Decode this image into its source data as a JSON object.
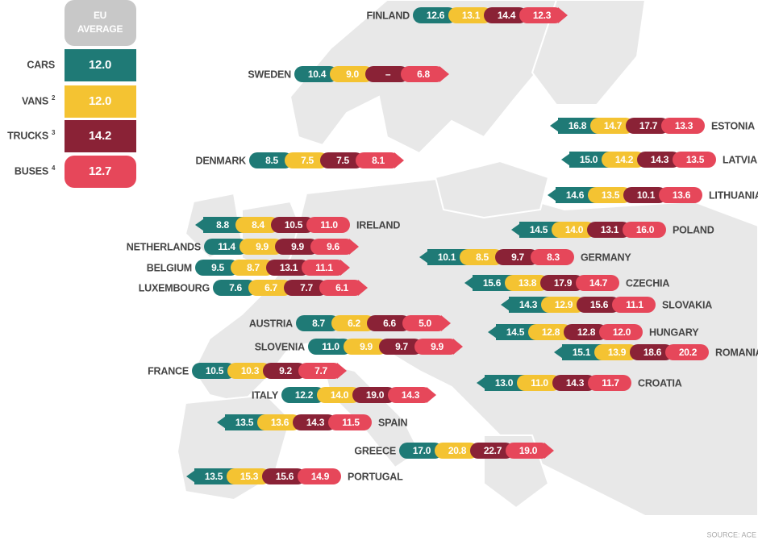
{
  "legend": {
    "header": [
      "EU",
      "AVERAGE"
    ],
    "items": [
      {
        "label": "CARS",
        "value": "12.0"
      },
      {
        "label": "VANS",
        "note": "2",
        "value": "12.0"
      },
      {
        "label": "TRUCKS",
        "note": "3",
        "value": "14.2"
      },
      {
        "label": "BUSES",
        "note": "4",
        "value": "12.7"
      }
    ]
  },
  "countries": [
    {
      "name": "FINLAND",
      "values": [
        "12.6",
        "13.1",
        "14.4",
        "12.3"
      ]
    },
    {
      "name": "SWEDEN",
      "values": [
        "10.4",
        "9.0",
        "–",
        "6.8"
      ]
    },
    {
      "name": "DENMARK",
      "values": [
        "8.5",
        "7.5",
        "7.5",
        "8.1"
      ]
    },
    {
      "name": "IRELAND",
      "values": [
        "8.8",
        "8.4",
        "10.5",
        "11.0"
      ]
    },
    {
      "name": "NETHERLANDS",
      "values": [
        "11.4",
        "9.9",
        "9.9",
        "9.6"
      ]
    },
    {
      "name": "BELGIUM",
      "values": [
        "9.5",
        "8.7",
        "13.1",
        "11.1"
      ]
    },
    {
      "name": "LUXEMBOURG",
      "values": [
        "7.6",
        "6.7",
        "7.7",
        "6.1"
      ]
    },
    {
      "name": "AUSTRIA",
      "values": [
        "8.7",
        "6.2",
        "6.6",
        "5.0"
      ]
    },
    {
      "name": "SLOVENIA",
      "values": [
        "11.0",
        "9.9",
        "9.7",
        "9.9"
      ]
    },
    {
      "name": "FRANCE",
      "values": [
        "10.5",
        "10.3",
        "9.2",
        "7.7"
      ]
    },
    {
      "name": "ITALY",
      "values": [
        "12.2",
        "14.0",
        "19.0",
        "14.3"
      ]
    },
    {
      "name": "SPAIN",
      "values": [
        "13.5",
        "13.6",
        "14.3",
        "11.5"
      ]
    },
    {
      "name": "GREECE",
      "values": [
        "17.0",
        "20.8",
        "22.7",
        "19.0"
      ]
    },
    {
      "name": "PORTUGAL",
      "values": [
        "13.5",
        "15.3",
        "15.6",
        "14.9"
      ]
    },
    {
      "name": "ESTONIA",
      "values": [
        "16.8",
        "14.7",
        "17.7",
        "13.3"
      ]
    },
    {
      "name": "LATVIA",
      "values": [
        "15.0",
        "14.2",
        "14.3",
        "13.5"
      ]
    },
    {
      "name": "LITHUANIA",
      "values": [
        "14.6",
        "13.5",
        "10.1",
        "13.6"
      ]
    },
    {
      "name": "POLAND",
      "values": [
        "14.5",
        "14.0",
        "13.1",
        "16.0"
      ]
    },
    {
      "name": "GERMANY",
      "values": [
        "10.1",
        "8.5",
        "9.7",
        "8.3"
      ]
    },
    {
      "name": "CZECHIA",
      "values": [
        "15.6",
        "13.8",
        "17.9",
        "14.7"
      ]
    },
    {
      "name": "SLOVAKIA",
      "values": [
        "14.3",
        "12.9",
        "15.6",
        "11.1"
      ]
    },
    {
      "name": "HUNGARY",
      "values": [
        "14.5",
        "12.8",
        "12.8",
        "12.0"
      ]
    },
    {
      "name": "ROMANIA",
      "values": [
        "15.1",
        "13.9",
        "18.6",
        "20.2"
      ]
    },
    {
      "name": "CROATIA",
      "values": [
        "13.0",
        "11.0",
        "14.3",
        "11.7"
      ]
    }
  ],
  "source": "SOURCE: ACE"
}
